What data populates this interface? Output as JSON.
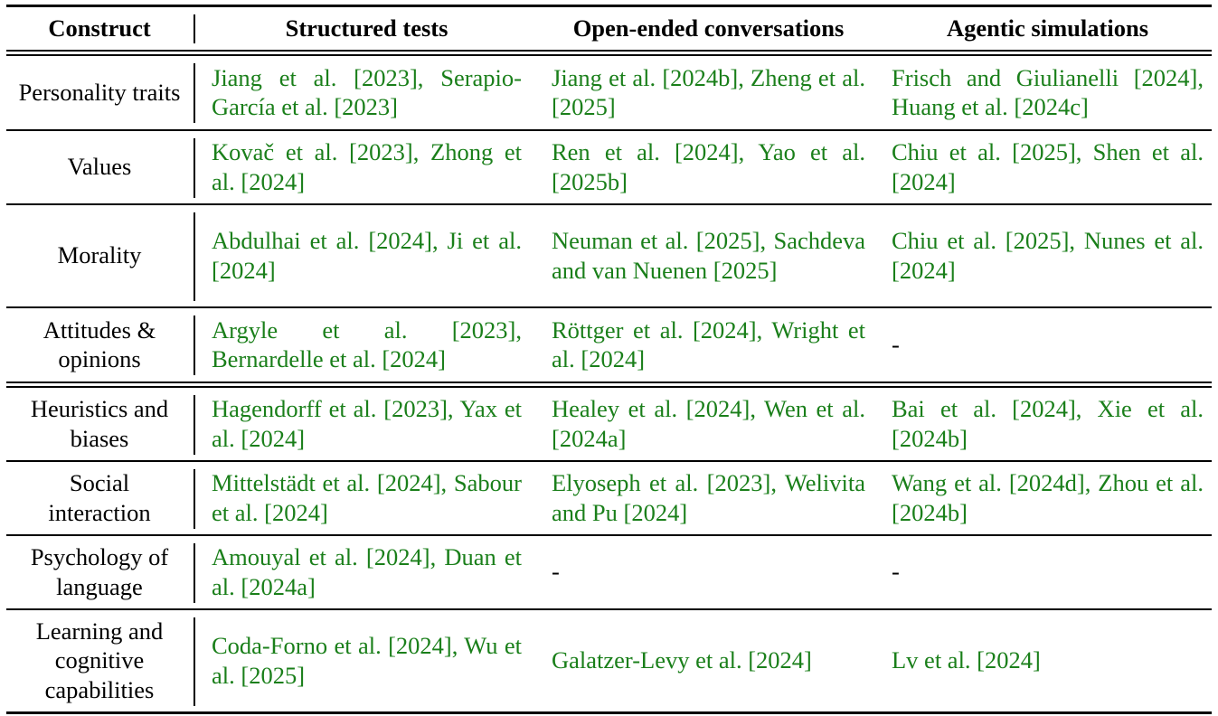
{
  "header": {
    "construct": "Construct",
    "structured": "Structured tests",
    "open_ended": "Open-ended conversations",
    "agentic": "Agentic simulations"
  },
  "rows": [
    {
      "construct": "Personality traits",
      "structured": "Jiang et al. [2023], Serapio-García et al. [2023]",
      "open_ended": "Jiang et al. [2024b], Zheng et al. [2025]",
      "agentic": "Frisch and Giulianelli [2024], Huang et al. [2024c]"
    },
    {
      "construct": "Values",
      "structured": "Kovač et al. [2023], Zhong et al. [2024]",
      "open_ended": "Ren et al. [2024], Yao et al. [2025b]",
      "agentic": "Chiu et al. [2025], Shen et al. [2024]"
    },
    {
      "construct": "Morality",
      "structured": "Abdulhai et al. [2024], Ji et al. [2024]",
      "open_ended": "Neuman et al. [2025], Sachdeva and van Nuenen [2025]",
      "agentic": "Chiu et al. [2025], Nunes et al. [2024]"
    },
    {
      "construct": "Attitudes & opinions",
      "structured": "Argyle et al. [2023], Bernardelle et al. [2024]",
      "open_ended": "Röttger et al. [2024], Wright et al. [2024]",
      "agentic": "-"
    },
    {
      "construct": "Heuristics and biases",
      "structured": "Hagendorff et al. [2023], Yax et al. [2024]",
      "open_ended": "Healey et al. [2024], Wen et al. [2024a]",
      "agentic": "Bai et al. [2024], Xie et al. [2024b]"
    },
    {
      "construct": "Social interaction",
      "structured": "Mittelstädt et al. [2024], Sabour et al. [2024]",
      "open_ended": "Elyoseph et al. [2023], Welivita and Pu [2024]",
      "agentic": "Wang et al. [2024d], Zhou et al. [2024b]"
    },
    {
      "construct": "Psychology of language",
      "structured": "Amouyal et al. [2024], Duan et al. [2024a]",
      "open_ended": "-",
      "agentic": "-"
    },
    {
      "construct": "Learning and cognitive capabilities",
      "structured": "Coda-Forno et al. [2024], Wu et al. [2025]",
      "open_ended": "Galatzer-Levy et al. [2024]",
      "agentic": "Lv et al. [2024]"
    }
  ],
  "colors": {
    "citation": "#1a7f1a",
    "text": "#000000"
  }
}
